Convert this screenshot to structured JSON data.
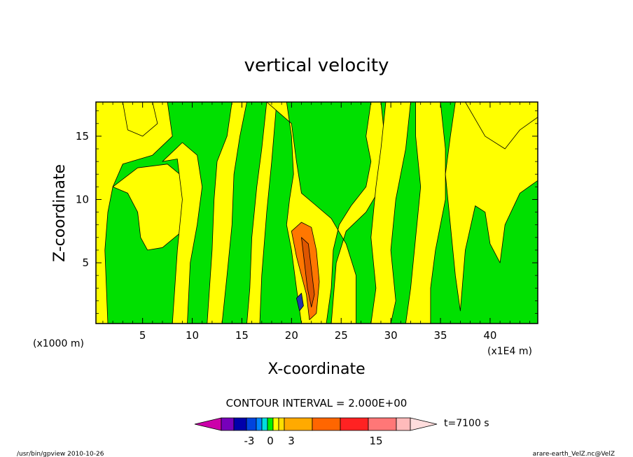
{
  "chart_data": {
    "type": "heatmap",
    "title": "vertical velocity",
    "xlabel": "X-coordinate",
    "ylabel": "Z-coordinate",
    "x_unit_left": "(x1000 m)",
    "x_unit_right": "(x1E4 m)",
    "xlim": [
      0.3,
      44.8
    ],
    "ylim": [
      0.2,
      17.7
    ],
    "x_ticks": [
      5,
      10,
      15,
      20,
      25,
      30,
      35,
      40
    ],
    "y_ticks": [
      5,
      10,
      15
    ],
    "x_tick_labels": [
      "5",
      "10",
      "15",
      "20",
      "25",
      "30",
      "35",
      "40"
    ],
    "y_tick_labels": [
      "5",
      "10",
      "15"
    ],
    "contour_interval_text": "CONTOUR INTERVAL = 2.000E+00",
    "time_label": "t=7100 s",
    "colorbar": {
      "labels": [
        "-3",
        "0",
        "3",
        "15"
      ],
      "segments": [
        "#cc00aa",
        "#7700bb",
        "#0000aa",
        "#0044dd",
        "#0088ff",
        "#00dddd",
        "#00ee00",
        "#ffff00",
        "#ffdd00",
        "#ffaa00",
        "#ff6600",
        "#ff2222",
        "#ff7777",
        "#ffbbbb",
        "#ffdddd"
      ]
    },
    "field_colors": {
      "green": "#00e000",
      "yellow": "#ffff00",
      "orange": "#ff7700",
      "darkorange": "#dd5500",
      "blue": "#2233aa"
    },
    "features": [
      {
        "name": "yellow-band-a",
        "color": "yellow",
        "points": [
          [
            1,
            17.7
          ],
          [
            7.5,
            17.7
          ],
          [
            8,
            15
          ],
          [
            6,
            13.5
          ],
          [
            3,
            12.8
          ],
          [
            2,
            11
          ],
          [
            1.5,
            9
          ],
          [
            1.2,
            6
          ],
          [
            1.5,
            0.2
          ],
          [
            0.3,
            0.2
          ],
          [
            0.3,
            17.7
          ]
        ]
      },
      {
        "name": "yellow-band-b",
        "color": "yellow",
        "points": [
          [
            3,
            17.7
          ],
          [
            6,
            17.7
          ],
          [
            6.5,
            16
          ],
          [
            5,
            15
          ],
          [
            3.5,
            15.5
          ]
        ]
      },
      {
        "name": "yellow-lobe-mid-left",
        "color": "yellow",
        "points": [
          [
            2,
            11
          ],
          [
            4.5,
            12.5
          ],
          [
            7.5,
            12.8
          ],
          [
            9.5,
            11.5
          ],
          [
            10,
            9
          ],
          [
            9,
            7.5
          ],
          [
            7,
            6.2
          ],
          [
            5.5,
            6
          ],
          [
            4.8,
            7
          ],
          [
            4.5,
            9
          ],
          [
            3.5,
            10.5
          ]
        ]
      },
      {
        "name": "yellow-column-left",
        "color": "yellow",
        "points": [
          [
            7,
            13
          ],
          [
            8.5,
            13.2
          ],
          [
            9,
            10
          ],
          [
            8.5,
            6
          ],
          [
            8,
            0.2
          ],
          [
            9.5,
            0.2
          ],
          [
            9.8,
            5
          ],
          [
            10.5,
            8
          ],
          [
            11,
            11
          ],
          [
            10.5,
            13.5
          ],
          [
            9,
            14.5
          ]
        ]
      },
      {
        "name": "yellow-column-c1",
        "color": "yellow",
        "points": [
          [
            11,
            17.7
          ],
          [
            14,
            17.7
          ],
          [
            13.5,
            15
          ],
          [
            12.5,
            13
          ],
          [
            12.2,
            10
          ],
          [
            12,
            6
          ],
          [
            11.5,
            0.2
          ],
          [
            13,
            0.2
          ],
          [
            13.5,
            4
          ],
          [
            14,
            8
          ],
          [
            14.2,
            12
          ],
          [
            14.8,
            15
          ],
          [
            15.5,
            17.7
          ]
        ]
      },
      {
        "name": "yellow-column-c2",
        "color": "yellow",
        "points": [
          [
            15,
            17.7
          ],
          [
            17.5,
            17.7
          ],
          [
            17,
            14
          ],
          [
            16.5,
            11
          ],
          [
            16,
            7
          ],
          [
            15.8,
            3
          ],
          [
            15.5,
            0.2
          ],
          [
            16.8,
            0.2
          ],
          [
            17,
            4
          ],
          [
            17.5,
            9
          ],
          [
            18,
            13
          ],
          [
            18.5,
            17.7
          ]
        ]
      },
      {
        "name": "yellow-central-tongue",
        "color": "yellow",
        "points": [
          [
            17.5,
            17.7
          ],
          [
            19.5,
            17.7
          ],
          [
            20,
            15
          ],
          [
            20.2,
            12
          ],
          [
            19.8,
            10
          ],
          [
            19.5,
            8
          ],
          [
            20,
            6
          ],
          [
            20.5,
            3
          ],
          [
            21,
            0.2
          ],
          [
            23.5,
            0.2
          ],
          [
            24,
            3
          ],
          [
            24.2,
            6
          ],
          [
            24.8,
            8
          ],
          [
            26,
            9.5
          ],
          [
            27.5,
            11
          ],
          [
            28,
            13
          ],
          [
            27.5,
            15
          ],
          [
            28,
            17.7
          ],
          [
            29,
            17.7
          ],
          [
            29.5,
            14
          ],
          [
            29,
            11
          ],
          [
            27.5,
            9
          ],
          [
            25.5,
            7.5
          ],
          [
            24.5,
            5
          ],
          [
            24,
            0.2
          ],
          [
            26.5,
            0.2
          ],
          [
            26.5,
            4
          ],
          [
            25.5,
            6.5
          ],
          [
            24,
            8.5
          ],
          [
            22.5,
            9.5
          ],
          [
            21,
            10.5
          ],
          [
            20.5,
            13
          ],
          [
            20,
            16
          ]
        ]
      },
      {
        "name": "yellow-right-c1",
        "color": "yellow",
        "points": [
          [
            29.5,
            17.7
          ],
          [
            32,
            17.7
          ],
          [
            31.5,
            14
          ],
          [
            30.5,
            10
          ],
          [
            30,
            6
          ],
          [
            30.5,
            2
          ],
          [
            30,
            0.2
          ],
          [
            28,
            0.2
          ],
          [
            28.5,
            3
          ],
          [
            28,
            7
          ],
          [
            28.5,
            11
          ],
          [
            29,
            14
          ]
        ]
      },
      {
        "name": "yellow-right-c2",
        "color": "yellow",
        "points": [
          [
            32.5,
            17.7
          ],
          [
            35,
            17.7
          ],
          [
            35.5,
            14
          ],
          [
            35.5,
            10
          ],
          [
            34.5,
            6
          ],
          [
            34,
            3
          ],
          [
            34,
            0.2
          ],
          [
            31.5,
            0.2
          ],
          [
            32,
            3
          ],
          [
            32.5,
            7
          ],
          [
            33,
            11
          ],
          [
            32.5,
            15
          ]
        ]
      },
      {
        "name": "yellow-right-large",
        "color": "yellow",
        "points": [
          [
            36.5,
            17.7
          ],
          [
            44.8,
            17.7
          ],
          [
            44.8,
            11.5
          ],
          [
            43,
            10.5
          ],
          [
            41.5,
            8
          ],
          [
            41,
            5
          ],
          [
            40,
            6.5
          ],
          [
            39.5,
            9
          ],
          [
            38.5,
            9.5
          ],
          [
            37.5,
            6
          ],
          [
            37,
            1.2
          ],
          [
            36.5,
            4
          ],
          [
            36,
            8
          ],
          [
            35.5,
            12
          ],
          [
            36,
            15
          ]
        ]
      },
      {
        "name": "yellow-right-top",
        "color": "yellow",
        "points": [
          [
            37.5,
            17.7
          ],
          [
            39.5,
            15
          ],
          [
            41.5,
            14
          ],
          [
            43,
            15.5
          ],
          [
            44.8,
            16.5
          ],
          [
            44.8,
            17.7
          ]
        ]
      },
      {
        "name": "orange-core",
        "color": "orange",
        "points": [
          [
            20,
            7.5
          ],
          [
            21,
            8.2
          ],
          [
            22,
            7.8
          ],
          [
            22.5,
            6
          ],
          [
            22.8,
            3.5
          ],
          [
            22.5,
            1
          ],
          [
            21.8,
            0.5
          ],
          [
            21.5,
            2.5
          ],
          [
            21,
            4
          ],
          [
            20.5,
            5.5
          ]
        ]
      },
      {
        "name": "orange-core-dark",
        "color": "darkorange",
        "points": [
          [
            21,
            7
          ],
          [
            21.7,
            6.5
          ],
          [
            22,
            4.5
          ],
          [
            22.3,
            2.5
          ],
          [
            22,
            1.5
          ],
          [
            21.6,
            3
          ],
          [
            21.3,
            5
          ]
        ]
      },
      {
        "name": "blue-spot",
        "color": "blue",
        "points": [
          [
            20.5,
            2.2
          ],
          [
            21,
            2.6
          ],
          [
            21.2,
            1.6
          ],
          [
            20.8,
            1.2
          ]
        ]
      }
    ],
    "grid": false,
    "legend": "bottom-center"
  },
  "footer": {
    "left": "/usr/bin/gpview   2010-10-26",
    "right": "arare-earth_VelZ.nc@VelZ"
  }
}
